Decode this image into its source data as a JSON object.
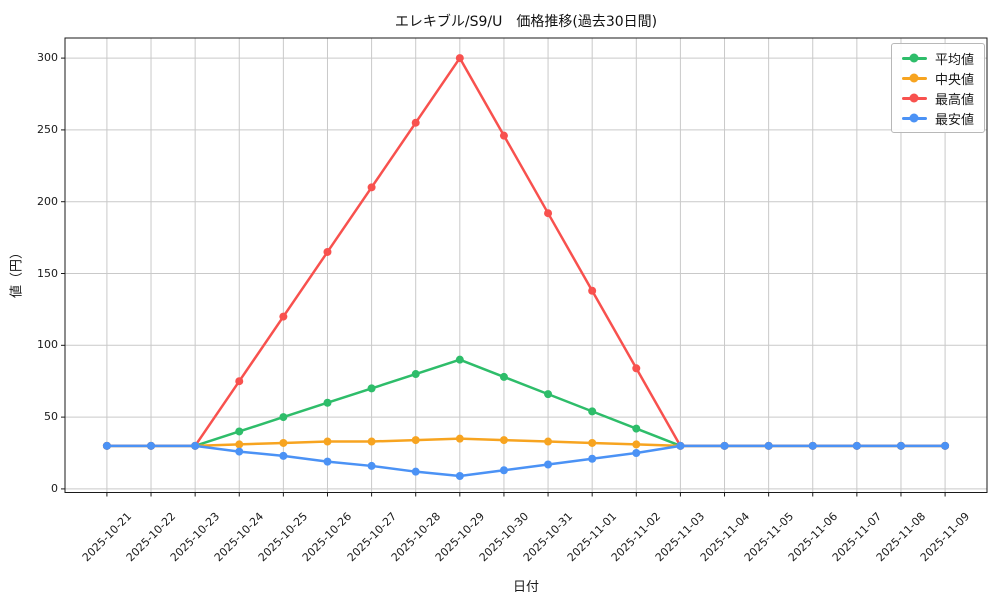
{
  "chart_data": {
    "type": "line",
    "title": "エレキブル/S9/U　価格推移(過去30日間)",
    "xlabel": "日付",
    "ylabel": "値（円）",
    "categories": [
      "2025-10-21",
      "2025-10-22",
      "2025-10-23",
      "2025-10-24",
      "2025-10-25",
      "2025-10-26",
      "2025-10-27",
      "2025-10-28",
      "2025-10-29",
      "2025-10-30",
      "2025-10-31",
      "2025-11-01",
      "2025-11-02",
      "2025-11-03",
      "2025-11-04",
      "2025-11-05",
      "2025-11-06",
      "2025-11-07",
      "2025-11-08",
      "2025-11-09"
    ],
    "yticks": [
      0,
      50,
      100,
      150,
      200,
      250,
      300
    ],
    "ylim": [
      -2.5,
      314
    ],
    "grid": true,
    "legend_position": "upper-right",
    "series": [
      {
        "key": "average",
        "name": "平均値",
        "color": "#2ebd6a",
        "values": [
          30,
          30,
          30,
          40,
          50,
          60,
          70,
          80,
          90,
          78,
          66,
          54,
          42,
          30,
          30,
          30,
          30,
          30,
          30,
          30
        ]
      },
      {
        "key": "median",
        "name": "中央値",
        "color": "#f7a420",
        "values": [
          30,
          30,
          30,
          31,
          32,
          33,
          33,
          34,
          35,
          34,
          33,
          32,
          31,
          30,
          30,
          30,
          30,
          30,
          30,
          30
        ]
      },
      {
        "key": "highest",
        "name": "最高値",
        "color": "#f8514e",
        "values": [
          30,
          30,
          30,
          75,
          120,
          165,
          210,
          255,
          300,
          246,
          192,
          138,
          84,
          30,
          30,
          30,
          30,
          30,
          30,
          30
        ]
      },
      {
        "key": "lowest",
        "name": "最安値",
        "color": "#4b92f5",
        "values": [
          30,
          30,
          30,
          26,
          23,
          19,
          16,
          12,
          9,
          13,
          17,
          21,
          25,
          30,
          30,
          30,
          30,
          30,
          30,
          30
        ]
      }
    ]
  }
}
